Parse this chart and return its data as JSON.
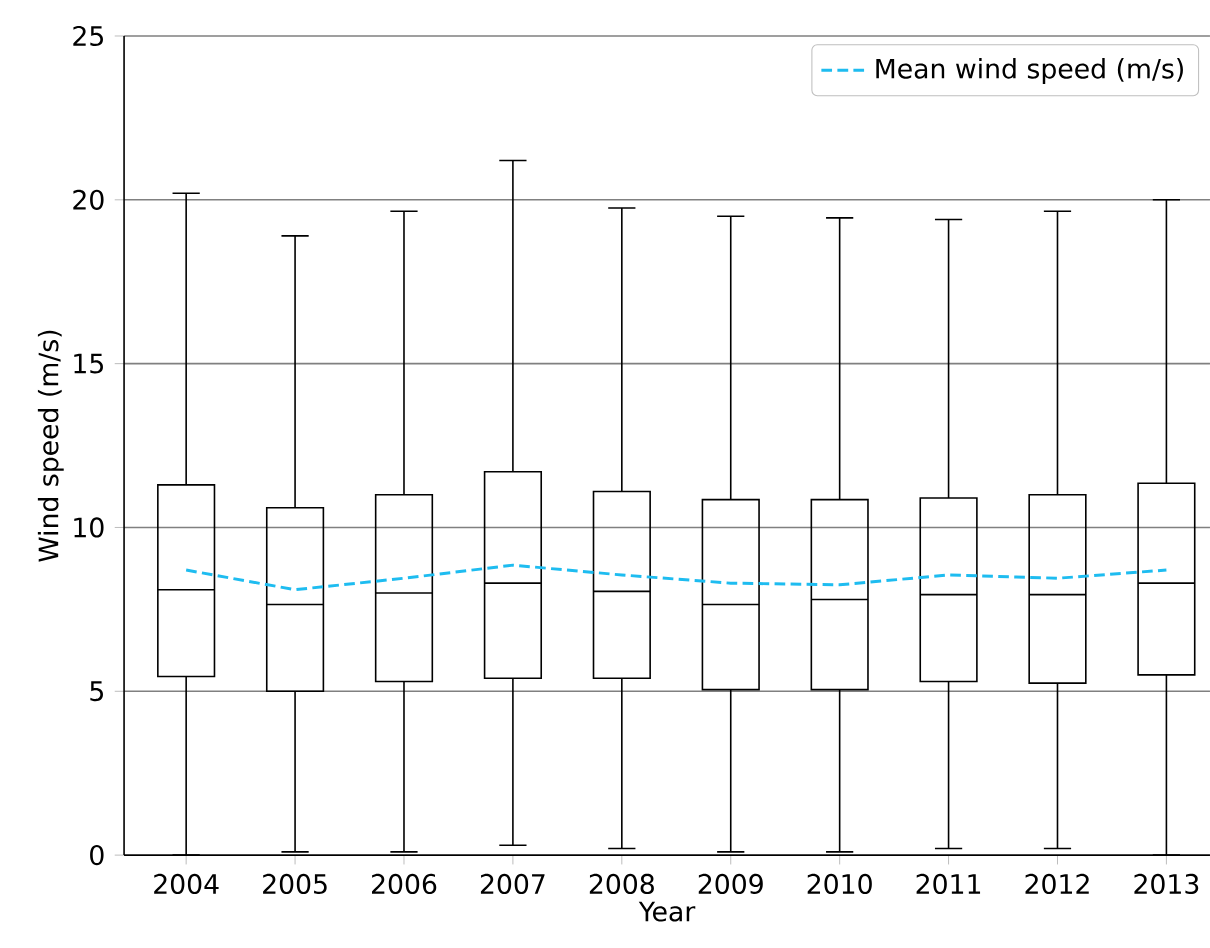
{
  "chart_data": {
    "type": "box",
    "xlabel": "Year",
    "ylabel": "Wind speed (m/s)",
    "categories": [
      "2004",
      "2005",
      "2006",
      "2007",
      "2008",
      "2009",
      "2010",
      "2011",
      "2012",
      "2013"
    ],
    "ylim": [
      0,
      25
    ],
    "yticks": [
      0,
      5,
      10,
      15,
      20,
      25
    ],
    "grid": "y",
    "legend": "top right",
    "series": [
      {
        "type": "box",
        "color": "#000000",
        "boxes": [
          {
            "low": 0,
            "q1": 5.45,
            "median": 8.1,
            "q3": 11.3,
            "high": 20.2
          },
          {
            "low": 0.1,
            "q1": 5.0,
            "median": 7.65,
            "q3": 10.6,
            "high": 18.9
          },
          {
            "low": 0.1,
            "q1": 5.3,
            "median": 8.0,
            "q3": 11.0,
            "high": 19.65
          },
          {
            "low": 0.3,
            "q1": 5.4,
            "median": 8.3,
            "q3": 11.7,
            "high": 21.2
          },
          {
            "low": 0.2,
            "q1": 5.4,
            "median": 8.05,
            "q3": 11.1,
            "high": 19.75
          },
          {
            "low": 0.1,
            "q1": 5.05,
            "median": 7.65,
            "q3": 10.85,
            "high": 19.5
          },
          {
            "low": 0.1,
            "q1": 5.05,
            "median": 7.8,
            "q3": 10.85,
            "high": 19.45
          },
          {
            "low": 0.2,
            "q1": 5.3,
            "median": 7.95,
            "q3": 10.9,
            "high": 19.4
          },
          {
            "low": 0.2,
            "q1": 5.25,
            "median": 7.95,
            "q3": 11.0,
            "high": 19.65
          },
          {
            "low": 0,
            "q1": 5.5,
            "median": 8.3,
            "q3": 11.35,
            "high": 20.0
          }
        ]
      },
      {
        "type": "line",
        "name": "Mean wind speed (m/s)",
        "color": "#1ebcf0",
        "line_style": "dashed",
        "marker": "none",
        "values": [
          8.7,
          8.1,
          8.45,
          8.85,
          8.55,
          8.3,
          8.25,
          8.55,
          8.45,
          8.7
        ]
      }
    ]
  }
}
